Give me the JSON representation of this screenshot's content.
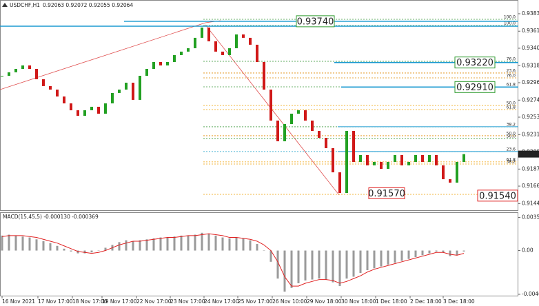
{
  "chart_data": [
    {
      "type": "candle",
      "title": "USDCHF,H1",
      "subtitle": "0.92063 0.92072 0.92055 0.92064",
      "up_color": "#22a022",
      "down_color": "#d01818",
      "values": [
        0.93052,
        0.93096,
        0.93139,
        0.93183,
        0.93139,
        0.93009,
        0.92922,
        0.92878,
        0.92791,
        0.92704,
        0.92617,
        0.92547,
        0.92617,
        0.92661,
        0.92574,
        0.92704,
        0.92835,
        0.92878,
        0.92965,
        0.92748,
        0.93052,
        0.93139,
        0.93226,
        0.93183,
        0.93226,
        0.93313,
        0.93357,
        0.934,
        0.93531,
        0.93661,
        0.93487,
        0.93357,
        0.93313,
        0.934,
        0.93574,
        0.93531,
        0.93444,
        0.93226,
        0.92878,
        0.92487,
        0.92226,
        0.92443,
        0.92574,
        0.92617,
        0.92487,
        0.92356,
        0.92269,
        0.92139,
        0.91834,
        0.91573,
        0.92356,
        0.91965,
        0.92052,
        0.91922,
        0.91965,
        0.91878,
        0.91965,
        0.92052,
        0.91922,
        0.91965,
        0.92052,
        0.91965,
        0.92052,
        0.91922,
        0.91747,
        0.91704,
        0.91965,
        0.92064
      ],
      "current": 0.92064,
      "xlim": [
        0,
        75
      ],
      "xticks": [
        {
          "value": 0,
          "label": "16 Nov 2021"
        },
        {
          "value": 5.2,
          "label": "17 Nov 17:00"
        },
        {
          "value": 10.2,
          "label": "18 Nov 17:00"
        },
        {
          "value": 14.5,
          "label": "19 Nov 17:00"
        },
        {
          "value": 19.5,
          "label": "22 Nov 17:00"
        },
        {
          "value": 24.4,
          "label": "23 Nov 17:00"
        },
        {
          "value": 29.3,
          "label": "24 Nov 17:00"
        },
        {
          "value": 34.2,
          "label": "25 Nov 17:00"
        },
        {
          "value": 39.2,
          "label": "26 Nov 10:00"
        },
        {
          "value": 44.2,
          "label": "29 Nov 18:00"
        },
        {
          "value": 49.2,
          "label": "30 Nov 18:00"
        },
        {
          "value": 54.2,
          "label": "1 Dec 18:00"
        },
        {
          "value": 59.2,
          "label": "2 Dec 18:00"
        },
        {
          "value": 64,
          "label": "3 Dec 18:00"
        }
      ],
      "ylim": [
        0.91356,
        0.93965
      ],
      "yticks": [
        0.93835,
        0.93615,
        {
          "value": 0.934,
          "label": "0.93400"
        },
        {
          "value": 0.9318,
          "label": "0.93180"
        },
        0.92965,
        0.92745,
        {
          "value": 0.9253,
          "label": "0.92530"
        },
        {
          "value": 0.9231,
          "label": "0.92310"
        },
        {
          "value": 0.9209,
          "label": "0.92090"
        },
        0.91875,
        {
          "value": 0.9166,
          "label": "0.91660"
        },
        {
          "value": 0.9144,
          "label": "0.91440"
        }
      ],
      "levels": [
        {
          "label": "100.0",
          "value": 0.93765,
          "color": "#3c9a3c"
        },
        {
          "label": "100.0",
          "value": 0.93687,
          "color": "#3c9a3c"
        },
        {
          "label": "76.0",
          "value": 0.93235,
          "color": "#3c9a3c"
        },
        {
          "label": "23.6",
          "value": 0.93087,
          "color": "#e08a00"
        },
        {
          "label": "76.0",
          "value": 0.93026,
          "color": "#e08a00"
        },
        {
          "label": "61.8",
          "value": 0.92913,
          "color": "#3c9a3c"
        },
        {
          "label": "50.0",
          "value": 0.92678,
          "color": "#f0a000"
        },
        {
          "label": "61.8",
          "value": 0.92626,
          "color": "#f0a000"
        },
        {
          "label": "38.2",
          "value": 0.92409,
          "color": "#3c9a3c"
        },
        {
          "label": "50.0",
          "value": 0.92296,
          "color": "#e08a00"
        },
        {
          "label": "50.0",
          "value": 0.92261,
          "color": "#3c9a3c"
        },
        {
          "label": "23.6",
          "value": 0.92096,
          "color": "#1aa0c8"
        },
        {
          "label": "61.8",
          "value": 0.91966,
          "color": "#f0a000"
        },
        {
          "label": "38.2",
          "value": 0.91939,
          "color": "#f0a000"
        },
        {
          "label": "0.0",
          "value": 0.91556,
          "color": "#f0a000"
        }
      ],
      "blue_lines": [
        0.9374,
        0.93678,
        0.9322,
        0.9291,
        0.92409,
        0.92096
      ],
      "boxes": [
        {
          "label": "0.93740",
          "value": 0.9374,
          "color": "#2e9a2e"
        },
        {
          "label": "0.93220",
          "value": 0.9322,
          "color": "#2e9a2e"
        },
        {
          "label": "0.92910",
          "value": 0.9291,
          "color": "#2e9a2e"
        },
        {
          "label": "0.91570",
          "value": 0.9157,
          "color": "#e02020"
        },
        {
          "label": "0.91540",
          "value": 0.9154,
          "color": "#e02020"
        }
      ]
    },
    {
      "type": "macd",
      "title": "MACD(15,45,5) -0.000130 -0.000369",
      "ylim": [
        -0.0049,
        0.0038
      ],
      "yticks": [
        {
          "value": 0.003546,
          "label": "0.003546"
        },
        {
          "value": 0,
          "label": "0.00"
        },
        {
          "value": -0.00468,
          "label": "-0.00468"
        }
      ],
      "hist_color": "#9a9a9a",
      "signal_color": "#e02020",
      "hist": [
        0.0016,
        0.0017,
        0.0016,
        0.0015,
        0.0014,
        0.0012,
        0.001,
        0.0008,
        0.0005,
        0.0002,
        -0.0001,
        -0.0003,
        -0.0003,
        -0.0002,
        0.0,
        0.0003,
        0.0006,
        0.0009,
        0.0011,
        0.001,
        0.0011,
        0.0012,
        0.0013,
        0.0014,
        0.0014,
        0.0015,
        0.0016,
        0.0016,
        0.0017,
        0.0019,
        0.0018,
        0.0016,
        0.0014,
        0.0013,
        0.0014,
        0.0013,
        0.0011,
        0.0007,
        0.0,
        -0.0012,
        -0.003,
        -0.0044,
        -0.004,
        -0.0035,
        -0.0032,
        -0.0031,
        -0.003,
        -0.0031,
        -0.0034,
        -0.0038,
        -0.003,
        -0.0028,
        -0.0024,
        -0.0021,
        -0.0019,
        -0.0017,
        -0.0015,
        -0.0013,
        -0.0011,
        -0.0009,
        -0.0007,
        -0.0005,
        -0.0003,
        -0.0001,
        -0.0002,
        -0.0006,
        -0.0005,
        -0.0001
      ],
      "signal": [
        0.0015,
        0.0016,
        0.0016,
        0.0016,
        0.0015,
        0.0014,
        0.0012,
        0.001,
        0.0008,
        0.0005,
        0.0002,
        -0.0001,
        -0.0002,
        -0.0003,
        -0.0002,
        0.0,
        0.0003,
        0.0006,
        0.0008,
        0.001,
        0.001,
        0.0011,
        0.0012,
        0.0013,
        0.0014,
        0.0014,
        0.0015,
        0.0016,
        0.0016,
        0.0017,
        0.0018,
        0.0017,
        0.0016,
        0.0014,
        0.0014,
        0.0013,
        0.0012,
        0.001,
        0.0006,
        0.0,
        -0.0012,
        -0.0028,
        -0.0038,
        -0.0038,
        -0.0035,
        -0.0033,
        -0.0031,
        -0.0031,
        -0.0032,
        -0.0035,
        -0.0033,
        -0.003,
        -0.0027,
        -0.0023,
        -0.002,
        -0.0018,
        -0.0016,
        -0.0014,
        -0.0012,
        -0.001,
        -0.0008,
        -0.0006,
        -0.0004,
        -0.0002,
        -0.0002,
        -0.0004,
        -0.0005,
        -0.0003
      ]
    }
  ]
}
